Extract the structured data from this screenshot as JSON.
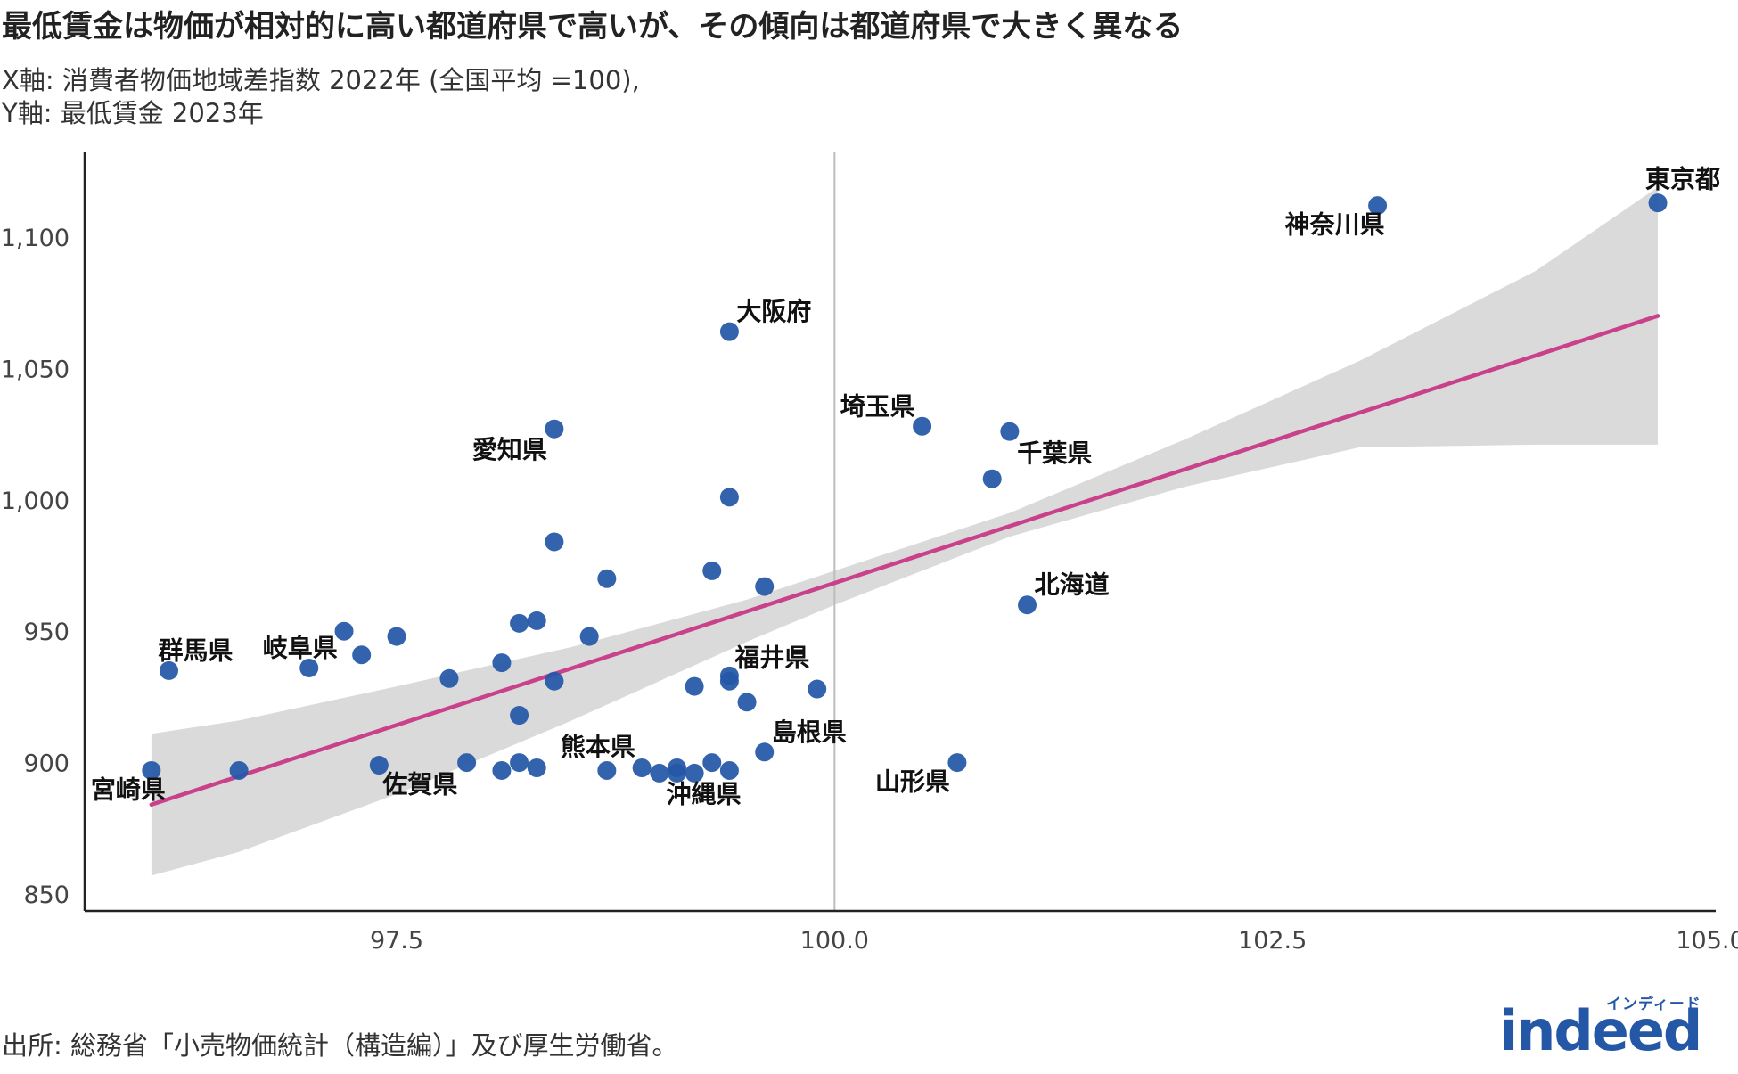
{
  "title": "最低賃金は物価が相対的に高い都道府県で高いが、その傾向は都道府県で大きく異なる",
  "subtitle": {
    "line1": "X軸: 消費者物価地域差指数 2022年 (全国平均 =100),",
    "line2": "Y軸: 最低賃金 2023年"
  },
  "source": "出所: 総務省「小売物価統計（構造編）」及び厚生労働省。",
  "logo": {
    "word": "indeed",
    "kana": "インディード"
  },
  "colors": {
    "point": "#2557a7",
    "fit": "#c8418a",
    "band": "#d8d8d8",
    "ref": "#bdbdbd",
    "axis": "#222222"
  },
  "chart_data": {
    "type": "scatter",
    "title": "最低賃金は物価が相対的に高い都道府県で高いが、その傾向は都道府県で大きく異なる",
    "xlabel": "消費者物価地域差指数 2022年 (全国平均 =100)",
    "ylabel": "最低賃金 2023年",
    "xlim": [
      95.7,
      105.0
    ],
    "ylim": [
      845,
      1130
    ],
    "x_ticks": [
      97.5,
      100.0,
      102.5,
      105.0
    ],
    "x_tick_labels": [
      "97.5",
      "100.0",
      "102.5",
      "105.0"
    ],
    "y_ticks": [
      850,
      900,
      950,
      1000,
      1050,
      1100
    ],
    "y_tick_labels": [
      "850",
      "900",
      "950",
      "1,000",
      "1,050",
      "1,100"
    ],
    "reference_x": 100.0,
    "fit_line": {
      "x": [
        96.1,
        104.7
      ],
      "y": [
        884,
        1070
      ]
    },
    "confidence_band": {
      "x": [
        96.1,
        96.6,
        97.5,
        98.5,
        99.5,
        100.0,
        101.0,
        102.0,
        103.0,
        104.0,
        104.7
      ],
      "upper": [
        911,
        916,
        929,
        944,
        962,
        973,
        995,
        1023,
        1053,
        1087,
        1119
      ],
      "lower": [
        857,
        866,
        888,
        916,
        946,
        960,
        986,
        1005,
        1020,
        1021,
        1021
      ]
    },
    "points": [
      {
        "x": 104.7,
        "y": 1113,
        "label": "東京都"
      },
      {
        "x": 103.1,
        "y": 1112,
        "label": "神奈川県"
      },
      {
        "x": 99.4,
        "y": 1064,
        "label": "大阪府"
      },
      {
        "x": 100.5,
        "y": 1028,
        "label": "埼玉県"
      },
      {
        "x": 98.4,
        "y": 1027,
        "label": "愛知県"
      },
      {
        "x": 101.0,
        "y": 1026,
        "label": ""
      },
      {
        "x": 100.9,
        "y": 1008,
        "label": "千葉県"
      },
      {
        "x": 99.4,
        "y": 1001,
        "label": ""
      },
      {
        "x": 98.4,
        "y": 984,
        "label": ""
      },
      {
        "x": 99.3,
        "y": 973,
        "label": ""
      },
      {
        "x": 98.7,
        "y": 970,
        "label": ""
      },
      {
        "x": 99.6,
        "y": 967,
        "label": ""
      },
      {
        "x": 101.1,
        "y": 960,
        "label": "北海道"
      },
      {
        "x": 98.3,
        "y": 954,
        "label": ""
      },
      {
        "x": 98.2,
        "y": 953,
        "label": ""
      },
      {
        "x": 97.2,
        "y": 950,
        "label": ""
      },
      {
        "x": 98.6,
        "y": 948,
        "label": ""
      },
      {
        "x": 97.5,
        "y": 948,
        "label": ""
      },
      {
        "x": 97.3,
        "y": 941,
        "label": ""
      },
      {
        "x": 98.1,
        "y": 938,
        "label": ""
      },
      {
        "x": 97.0,
        "y": 936,
        "label": "岐阜県"
      },
      {
        "x": 96.2,
        "y": 935,
        "label": "群馬県"
      },
      {
        "x": 99.4,
        "y": 933,
        "label": "福井県"
      },
      {
        "x": 97.8,
        "y": 932,
        "label": ""
      },
      {
        "x": 98.4,
        "y": 931,
        "label": ""
      },
      {
        "x": 99.4,
        "y": 931,
        "label": ""
      },
      {
        "x": 99.2,
        "y": 929,
        "label": ""
      },
      {
        "x": 99.9,
        "y": 928,
        "label": ""
      },
      {
        "x": 99.5,
        "y": 923,
        "label": ""
      },
      {
        "x": 98.2,
        "y": 918,
        "label": ""
      },
      {
        "x": 99.6,
        "y": 904,
        "label": "島根県"
      },
      {
        "x": 97.9,
        "y": 900,
        "label": ""
      },
      {
        "x": 98.2,
        "y": 900,
        "label": ""
      },
      {
        "x": 99.3,
        "y": 900,
        "label": ""
      },
      {
        "x": 100.7,
        "y": 900,
        "label": "山形県"
      },
      {
        "x": 97.4,
        "y": 899,
        "label": "佐賀県"
      },
      {
        "x": 98.3,
        "y": 898,
        "label": ""
      },
      {
        "x": 98.9,
        "y": 898,
        "label": ""
      },
      {
        "x": 99.1,
        "y": 898,
        "label": ""
      },
      {
        "x": 96.1,
        "y": 897,
        "label": "宮崎県"
      },
      {
        "x": 96.6,
        "y": 897,
        "label": ""
      },
      {
        "x": 98.1,
        "y": 897,
        "label": ""
      },
      {
        "x": 98.7,
        "y": 897,
        "label": "熊本県"
      },
      {
        "x": 99.4,
        "y": 897,
        "label": ""
      },
      {
        "x": 99.0,
        "y": 896,
        "label": ""
      },
      {
        "x": 99.1,
        "y": 896,
        "label": "沖縄県"
      },
      {
        "x": 99.2,
        "y": 896,
        "label": ""
      }
    ]
  }
}
